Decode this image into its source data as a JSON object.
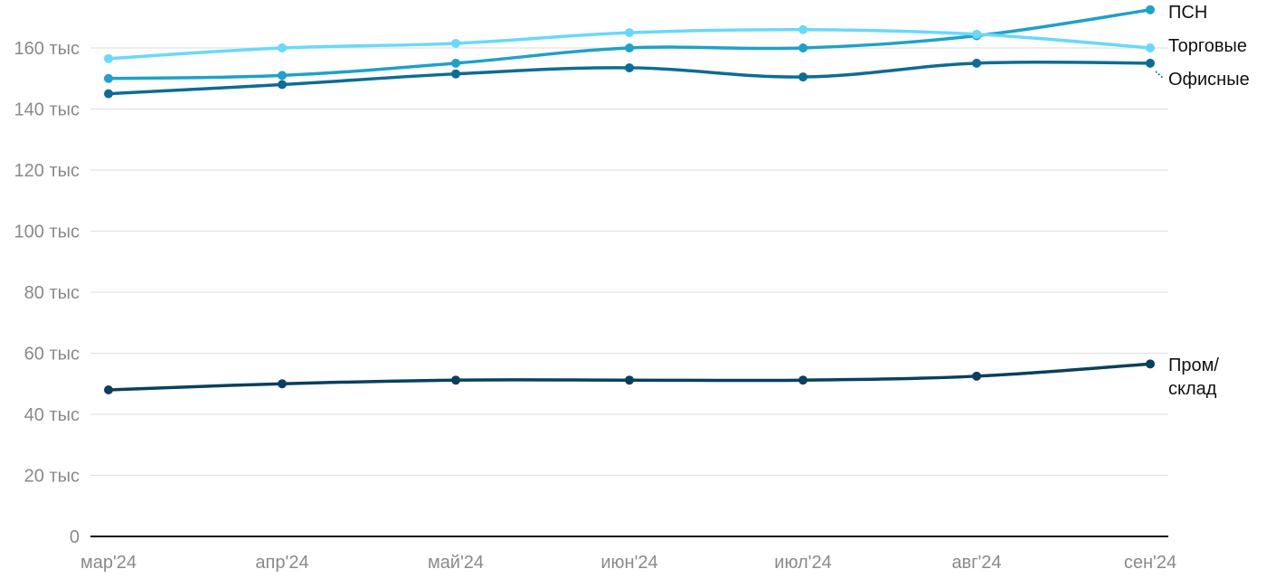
{
  "chart_data": {
    "type": "line",
    "title": "",
    "xlabel": "",
    "ylabel": "",
    "categories": [
      "мар'24",
      "апр'24",
      "май'24",
      "июн'24",
      "июл'24",
      "авг'24",
      "сен'24"
    ],
    "ylim": [
      0,
      175000
    ],
    "yticks": [
      0,
      20000,
      40000,
      60000,
      80000,
      100000,
      120000,
      140000,
      160000
    ],
    "ytick_labels": [
      "0",
      "20 тыс",
      "40 тыс",
      "60 тыс",
      "80 тыс",
      "100 тыс",
      "120 тыс",
      "140 тыс",
      "160 тыс"
    ],
    "grid": "horizontal",
    "legend": "direct labels at line ends (right)",
    "series": [
      {
        "name": "ПСН",
        "label_lines": [
          "ПСН"
        ],
        "color": "#1fa1c9",
        "values": [
          150000,
          151000,
          155000,
          160000,
          160000,
          164000,
          172500
        ]
      },
      {
        "name": "Торговые",
        "label_lines": [
          "Торговые"
        ],
        "color": "#6ad8fa",
        "values": [
          156500,
          160000,
          161500,
          165000,
          166000,
          164500,
          160000
        ]
      },
      {
        "name": "Офисные",
        "label_lines": [
          "Офисные"
        ],
        "color": "#0d6c94",
        "values": [
          145000,
          148000,
          151500,
          153500,
          150500,
          155000,
          155000
        ]
      },
      {
        "name": "Пром/склад",
        "label_lines": [
          "Пром/",
          "склад"
        ],
        "color": "#0b3f5e",
        "values": [
          48000,
          50000,
          51200,
          51200,
          51200,
          52500,
          56500
        ]
      }
    ]
  }
}
